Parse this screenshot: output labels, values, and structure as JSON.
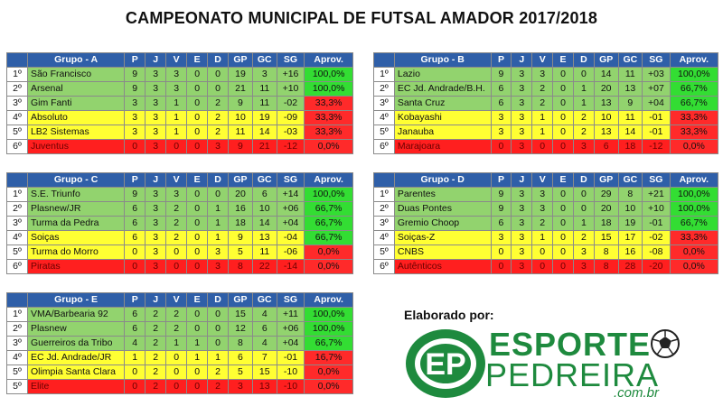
{
  "title": "CAMPEONATO MUNICIPAL DE FUTSAL AMADOR 2017/2018",
  "columns": [
    "P",
    "J",
    "V",
    "E",
    "D",
    "GP",
    "GC",
    "SG",
    "Aprov."
  ],
  "colors": {
    "header": "#2f5fa8",
    "green": "#92d36e",
    "yellow": "#ffff33",
    "red": "#ff1f1f",
    "aprov_green": "#33dd33"
  },
  "groups": [
    {
      "name": "Grupo - A",
      "rows": [
        {
          "pos": "1º",
          "team": "São Francisco",
          "p": "9",
          "j": "3",
          "v": "3",
          "e": "0",
          "d": "0",
          "gp": "19",
          "gc": "3",
          "sg": "+16",
          "aprov": "100,0%",
          "color": "green",
          "aprov_color": "green"
        },
        {
          "pos": "2º",
          "team": "Arsenal",
          "p": "9",
          "j": "3",
          "v": "3",
          "e": "0",
          "d": "0",
          "gp": "21",
          "gc": "11",
          "sg": "+10",
          "aprov": "100,0%",
          "color": "green",
          "aprov_color": "green"
        },
        {
          "pos": "3º",
          "team": "Gim Fanti",
          "p": "3",
          "j": "3",
          "v": "1",
          "e": "0",
          "d": "2",
          "gp": "9",
          "gc": "11",
          "sg": "-02",
          "aprov": "33,3%",
          "color": "green",
          "aprov_color": "red"
        },
        {
          "pos": "4º",
          "team": "Absoluto",
          "p": "3",
          "j": "3",
          "v": "1",
          "e": "0",
          "d": "2",
          "gp": "10",
          "gc": "19",
          "sg": "-09",
          "aprov": "33,3%",
          "color": "yellow",
          "aprov_color": "red"
        },
        {
          "pos": "5º",
          "team": "LB2 Sistemas",
          "p": "3",
          "j": "3",
          "v": "1",
          "e": "0",
          "d": "2",
          "gp": "11",
          "gc": "14",
          "sg": "-03",
          "aprov": "33,3%",
          "color": "yellow",
          "aprov_color": "red"
        },
        {
          "pos": "6º",
          "team": "Juventus",
          "p": "0",
          "j": "3",
          "v": "0",
          "e": "0",
          "d": "3",
          "gp": "9",
          "gc": "21",
          "sg": "-12",
          "aprov": "0,0%",
          "color": "red",
          "aprov_color": "red"
        }
      ]
    },
    {
      "name": "Grupo - B",
      "rows": [
        {
          "pos": "1º",
          "team": "Lazio",
          "p": "9",
          "j": "3",
          "v": "3",
          "e": "0",
          "d": "0",
          "gp": "14",
          "gc": "11",
          "sg": "+03",
          "aprov": "100,0%",
          "color": "green",
          "aprov_color": "green"
        },
        {
          "pos": "2º",
          "team": "EC Jd. Andrade/B.H.",
          "p": "6",
          "j": "3",
          "v": "2",
          "e": "0",
          "d": "1",
          "gp": "20",
          "gc": "13",
          "sg": "+07",
          "aprov": "66,7%",
          "color": "green",
          "aprov_color": "green"
        },
        {
          "pos": "3º",
          "team": "Santa Cruz",
          "p": "6",
          "j": "3",
          "v": "2",
          "e": "0",
          "d": "1",
          "gp": "13",
          "gc": "9",
          "sg": "+04",
          "aprov": "66,7%",
          "color": "green",
          "aprov_color": "green"
        },
        {
          "pos": "4º",
          "team": "Kobayashi",
          "p": "3",
          "j": "3",
          "v": "1",
          "e": "0",
          "d": "2",
          "gp": "10",
          "gc": "11",
          "sg": "-01",
          "aprov": "33,3%",
          "color": "yellow",
          "aprov_color": "red"
        },
        {
          "pos": "5º",
          "team": "Janauba",
          "p": "3",
          "j": "3",
          "v": "1",
          "e": "0",
          "d": "2",
          "gp": "13",
          "gc": "14",
          "sg": "-01",
          "aprov": "33,3%",
          "color": "yellow",
          "aprov_color": "red"
        },
        {
          "pos": "6º",
          "team": "Marajoara",
          "p": "0",
          "j": "3",
          "v": "0",
          "e": "0",
          "d": "3",
          "gp": "6",
          "gc": "18",
          "sg": "-12",
          "aprov": "0,0%",
          "color": "red",
          "aprov_color": "red"
        }
      ]
    },
    {
      "name": "Grupo - C",
      "rows": [
        {
          "pos": "1º",
          "team": "S.E. Triunfo",
          "p": "9",
          "j": "3",
          "v": "3",
          "e": "0",
          "d": "0",
          "gp": "20",
          "gc": "6",
          "sg": "+14",
          "aprov": "100,0%",
          "color": "green",
          "aprov_color": "green"
        },
        {
          "pos": "2º",
          "team": "Plasnew/JR",
          "p": "6",
          "j": "3",
          "v": "2",
          "e": "0",
          "d": "1",
          "gp": "16",
          "gc": "10",
          "sg": "+06",
          "aprov": "66,7%",
          "color": "green",
          "aprov_color": "green"
        },
        {
          "pos": "3º",
          "team": "Turma da Pedra",
          "p": "6",
          "j": "3",
          "v": "2",
          "e": "0",
          "d": "1",
          "gp": "18",
          "gc": "14",
          "sg": "+04",
          "aprov": "66,7%",
          "color": "green",
          "aprov_color": "green"
        },
        {
          "pos": "4º",
          "team": "Soiças",
          "p": "6",
          "j": "3",
          "v": "2",
          "e": "0",
          "d": "1",
          "gp": "9",
          "gc": "13",
          "sg": "-04",
          "aprov": "66,7%",
          "color": "yellow",
          "aprov_color": "green"
        },
        {
          "pos": "5º",
          "team": "Turma do Morro",
          "p": "0",
          "j": "3",
          "v": "0",
          "e": "0",
          "d": "3",
          "gp": "5",
          "gc": "11",
          "sg": "-06",
          "aprov": "0,0%",
          "color": "yellow",
          "aprov_color": "red"
        },
        {
          "pos": "6º",
          "team": "Piratas",
          "p": "0",
          "j": "3",
          "v": "0",
          "e": "0",
          "d": "3",
          "gp": "8",
          "gc": "22",
          "sg": "-14",
          "aprov": "0,0%",
          "color": "red",
          "aprov_color": "red"
        }
      ]
    },
    {
      "name": "Grupo - D",
      "rows": [
        {
          "pos": "1º",
          "team": "Parentes",
          "p": "9",
          "j": "3",
          "v": "3",
          "e": "0",
          "d": "0",
          "gp": "29",
          "gc": "8",
          "sg": "+21",
          "aprov": "100,0%",
          "color": "green",
          "aprov_color": "green"
        },
        {
          "pos": "2º",
          "team": "Duas Pontes",
          "p": "9",
          "j": "3",
          "v": "3",
          "e": "0",
          "d": "0",
          "gp": "20",
          "gc": "10",
          "sg": "+10",
          "aprov": "100,0%",
          "color": "green",
          "aprov_color": "green"
        },
        {
          "pos": "3º",
          "team": "Gremio Choop",
          "p": "6",
          "j": "3",
          "v": "2",
          "e": "0",
          "d": "1",
          "gp": "18",
          "gc": "19",
          "sg": "-01",
          "aprov": "66,7%",
          "color": "green",
          "aprov_color": "green"
        },
        {
          "pos": "4º",
          "team": "Soiças-Z",
          "p": "3",
          "j": "3",
          "v": "1",
          "e": "0",
          "d": "2",
          "gp": "15",
          "gc": "17",
          "sg": "-02",
          "aprov": "33,3%",
          "color": "yellow",
          "aprov_color": "red"
        },
        {
          "pos": "5º",
          "team": "CNBS",
          "p": "0",
          "j": "3",
          "v": "0",
          "e": "0",
          "d": "3",
          "gp": "8",
          "gc": "16",
          "sg": "-08",
          "aprov": "0,0%",
          "color": "yellow",
          "aprov_color": "red"
        },
        {
          "pos": "6º",
          "team": "Autênticos",
          "p": "0",
          "j": "3",
          "v": "0",
          "e": "0",
          "d": "3",
          "gp": "8",
          "gc": "28",
          "sg": "-20",
          "aprov": "0,0%",
          "color": "red",
          "aprov_color": "red"
        }
      ]
    },
    {
      "name": "Grupo - E",
      "rows": [
        {
          "pos": "1º",
          "team": "VMA/Barbearia 92",
          "p": "6",
          "j": "2",
          "v": "2",
          "e": "0",
          "d": "0",
          "gp": "15",
          "gc": "4",
          "sg": "+11",
          "aprov": "100,0%",
          "color": "green",
          "aprov_color": "green"
        },
        {
          "pos": "2º",
          "team": "Plasnew",
          "p": "6",
          "j": "2",
          "v": "2",
          "e": "0",
          "d": "0",
          "gp": "12",
          "gc": "6",
          "sg": "+06",
          "aprov": "100,0%",
          "color": "green",
          "aprov_color": "green"
        },
        {
          "pos": "3º",
          "team": "Guerreiros da Tribo",
          "p": "4",
          "j": "2",
          "v": "1",
          "e": "1",
          "d": "0",
          "gp": "8",
          "gc": "4",
          "sg": "+04",
          "aprov": "66,7%",
          "color": "green",
          "aprov_color": "green"
        },
        {
          "pos": "4º",
          "team": "EC Jd. Andrade/JR",
          "p": "1",
          "j": "2",
          "v": "0",
          "e": "1",
          "d": "1",
          "gp": "6",
          "gc": "7",
          "sg": "-01",
          "aprov": "16,7%",
          "color": "yellow",
          "aprov_color": "red"
        },
        {
          "pos": "5º",
          "team": "Olimpia Santa Clara",
          "p": "0",
          "j": "2",
          "v": "0",
          "e": "0",
          "d": "2",
          "gp": "5",
          "gc": "15",
          "sg": "-10",
          "aprov": "0,0%",
          "color": "yellow",
          "aprov_color": "red"
        },
        {
          "pos": "5º",
          "team": "Elite",
          "p": "0",
          "j": "2",
          "v": "0",
          "e": "0",
          "d": "2",
          "gp": "3",
          "gc": "13",
          "sg": "-10",
          "aprov": "0,0%",
          "color": "red",
          "aprov_color": "red"
        }
      ]
    }
  ],
  "credit": "Elaborado por:",
  "logo": {
    "mark": "EP",
    "word1": "ESPORTE",
    "word2": "PEDREIRA",
    "word3": ".com.br"
  }
}
